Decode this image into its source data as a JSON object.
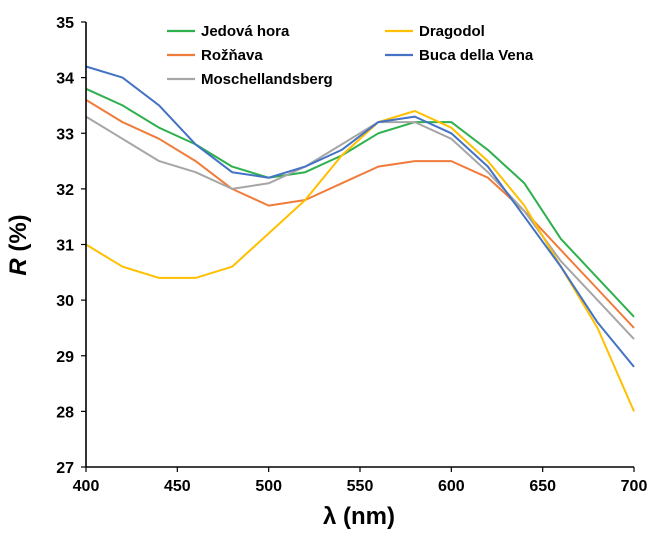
{
  "chart_data": {
    "type": "line",
    "xlabel": "λ (nm)",
    "ylabel_symbol": "R",
    "ylabel_unit": " (%)",
    "xlim": [
      400,
      700
    ],
    "ylim": [
      27,
      35
    ],
    "xticks": [
      400,
      450,
      500,
      550,
      600,
      650,
      700
    ],
    "yticks": [
      27,
      28,
      29,
      30,
      31,
      32,
      33,
      34,
      35
    ],
    "grid": false,
    "legend_position": "top",
    "x": [
      400,
      420,
      440,
      460,
      480,
      500,
      520,
      540,
      560,
      580,
      600,
      620,
      640,
      660,
      680,
      700
    ],
    "series": [
      {
        "name": "Jedová hora",
        "color": "#2EB04D",
        "values": [
          33.8,
          33.5,
          33.1,
          32.8,
          32.4,
          32.2,
          32.3,
          32.6,
          33.0,
          33.2,
          33.2,
          32.7,
          32.1,
          31.1,
          30.4,
          29.7
        ]
      },
      {
        "name": "Rožňava",
        "color": "#F07C3C",
        "values": [
          33.6,
          33.2,
          32.9,
          32.5,
          32.0,
          31.7,
          31.8,
          32.1,
          32.4,
          32.5,
          32.5,
          32.2,
          31.6,
          30.9,
          30.2,
          29.5
        ]
      },
      {
        "name": "Moschellandsberg",
        "color": "#A6A6A6",
        "values": [
          33.3,
          32.9,
          32.5,
          32.3,
          32.0,
          32.1,
          32.4,
          32.8,
          33.2,
          33.2,
          32.9,
          32.3,
          31.6,
          30.7,
          30.0,
          29.3
        ]
      },
      {
        "name": "Dragodol",
        "color": "#FFC000",
        "values": [
          31.0,
          30.6,
          30.4,
          30.4,
          30.6,
          31.2,
          31.8,
          32.6,
          33.2,
          33.4,
          33.1,
          32.5,
          31.7,
          30.6,
          29.5,
          28.0
        ]
      },
      {
        "name": "Buca della Vena",
        "color": "#4472C4",
        "values": [
          34.2,
          34.0,
          33.5,
          32.8,
          32.3,
          32.2,
          32.4,
          32.7,
          33.2,
          33.3,
          33.0,
          32.4,
          31.5,
          30.6,
          29.6,
          28.8
        ]
      }
    ]
  }
}
